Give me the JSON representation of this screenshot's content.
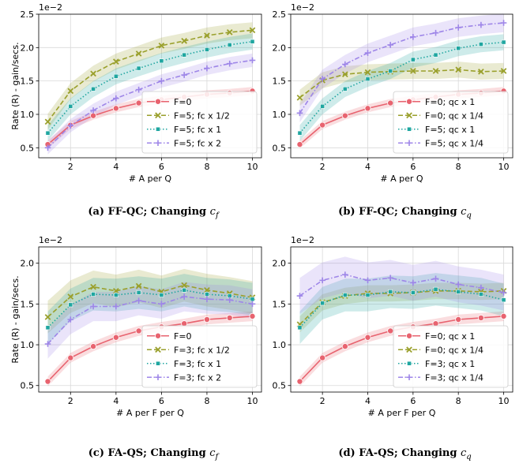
{
  "chart_data": [
    {
      "type": "line",
      "caption": "(a) FF-QC; Changing ",
      "caption_symbol": "c",
      "caption_subscript": "f",
      "xlabel": "# A per Q",
      "ylabel": "Rate (R) - gain/secs.",
      "exponent_label": "1e−2",
      "xlim": [
        0.6,
        10.4
      ],
      "ylim": [
        0.35,
        2.5
      ],
      "xticks": [
        "2",
        "4",
        "6",
        "8",
        "10"
      ],
      "yticks": [
        "0.5",
        "1.0",
        "1.5",
        "2.0",
        "2.5"
      ],
      "legend_position": "lower right",
      "grid": true,
      "x": [
        1,
        2,
        3,
        4,
        5,
        6,
        7,
        8,
        9,
        10
      ],
      "series": [
        {
          "name": "F=0",
          "color": "#e8636f",
          "marker": "circle",
          "dash": "solid",
          "values": [
            0.55,
            0.84,
            0.98,
            1.09,
            1.17,
            1.22,
            1.26,
            1.3,
            1.32,
            1.35
          ],
          "band": 0.06
        },
        {
          "name": "F=5; fc x 1/2",
          "color": "#9aa02c",
          "marker": "x",
          "dash": "dashed",
          "values": [
            0.89,
            1.35,
            1.61,
            1.79,
            1.91,
            2.03,
            2.1,
            2.18,
            2.23,
            2.26
          ],
          "band": 0.12
        },
        {
          "name": "F=5; fc x 1",
          "color": "#1fa6a0",
          "marker": "square",
          "dash": "dotted",
          "values": [
            0.72,
            1.12,
            1.38,
            1.57,
            1.69,
            1.8,
            1.89,
            1.97,
            2.04,
            2.09
          ],
          "band": 0.12
        },
        {
          "name": "F=5; fc x 2",
          "color": "#9e86e8",
          "marker": "plus",
          "dash": "dashdot",
          "values": [
            0.5,
            0.83,
            1.06,
            1.24,
            1.37,
            1.5,
            1.59,
            1.69,
            1.76,
            1.81
          ],
          "band": 0.1
        }
      ]
    },
    {
      "type": "line",
      "caption": "(b) FF-QC; Changing ",
      "caption_symbol": "c",
      "caption_subscript": "q",
      "xlabel": "# A per Q",
      "ylabel": "",
      "exponent_label": "1e−2",
      "xlim": [
        0.6,
        10.4
      ],
      "ylim": [
        0.35,
        2.5
      ],
      "xticks": [
        "2",
        "4",
        "6",
        "8",
        "10"
      ],
      "yticks": [
        "0.5",
        "1.0",
        "1.5",
        "2.0",
        "2.5"
      ],
      "legend_position": "lower right",
      "grid": true,
      "x": [
        1,
        2,
        3,
        4,
        5,
        6,
        7,
        8,
        9,
        10
      ],
      "series": [
        {
          "name": "F=0; qc x 1",
          "color": "#e8636f",
          "marker": "circle",
          "dash": "solid",
          "values": [
            0.55,
            0.84,
            0.98,
            1.09,
            1.17,
            1.22,
            1.26,
            1.3,
            1.32,
            1.35
          ],
          "band": 0.06
        },
        {
          "name": "F=0; qc x 1/4",
          "color": "#9aa02c",
          "marker": "x",
          "dash": "dashed",
          "values": [
            1.25,
            1.51,
            1.6,
            1.63,
            1.64,
            1.65,
            1.65,
            1.67,
            1.64,
            1.65
          ],
          "band": 0.12
        },
        {
          "name": "F=5; qc x 1",
          "color": "#1fa6a0",
          "marker": "square",
          "dash": "dotted",
          "values": [
            0.72,
            1.12,
            1.38,
            1.53,
            1.65,
            1.82,
            1.89,
            1.99,
            2.05,
            2.08
          ],
          "band": 0.12
        },
        {
          "name": "F=5; qc x 1/4",
          "color": "#9e86e8",
          "marker": "plus",
          "dash": "dashdot",
          "values": [
            1.02,
            1.53,
            1.75,
            1.92,
            2.04,
            2.16,
            2.22,
            2.3,
            2.34,
            2.37
          ],
          "band": 0.14
        }
      ]
    },
    {
      "type": "line",
      "caption": "(c) FA-QS; Changing ",
      "caption_symbol": "c",
      "caption_subscript": "f",
      "xlabel": "# A per F per Q",
      "ylabel": "Rate (R) - gain/secs.",
      "exponent_label": "1e−2",
      "xlim": [
        0.6,
        10.4
      ],
      "ylim": [
        0.42,
        2.2
      ],
      "xticks": [
        "2",
        "4",
        "6",
        "8",
        "10"
      ],
      "yticks": [
        "0.5",
        "1.0",
        "1.5",
        "2.0"
      ],
      "legend_position": "lower right",
      "grid": true,
      "x": [
        1,
        2,
        3,
        4,
        5,
        6,
        7,
        8,
        9,
        10
      ],
      "series": [
        {
          "name": "F=0",
          "color": "#e8636f",
          "marker": "circle",
          "dash": "solid",
          "values": [
            0.55,
            0.84,
            0.98,
            1.09,
            1.17,
            1.22,
            1.26,
            1.31,
            1.33,
            1.35
          ],
          "band": 0.06
        },
        {
          "name": "F=3; fc x 1/2",
          "color": "#9aa02c",
          "marker": "x",
          "dash": "dashed",
          "values": [
            1.34,
            1.59,
            1.71,
            1.66,
            1.72,
            1.65,
            1.73,
            1.67,
            1.63,
            1.58
          ],
          "band": 0.2
        },
        {
          "name": "F=3; fc x 1",
          "color": "#1fa6a0",
          "marker": "square",
          "dash": "dotted",
          "values": [
            1.21,
            1.49,
            1.62,
            1.61,
            1.64,
            1.61,
            1.67,
            1.62,
            1.6,
            1.56
          ],
          "band": 0.2
        },
        {
          "name": "F=3; fc x 2",
          "color": "#9e86e8",
          "marker": "plus",
          "dash": "dashdot",
          "values": [
            1.01,
            1.31,
            1.47,
            1.47,
            1.54,
            1.5,
            1.59,
            1.56,
            1.55,
            1.5
          ],
          "band": 0.18
        }
      ]
    },
    {
      "type": "line",
      "caption": "(d) FA-QS; Changing ",
      "caption_symbol": "c",
      "caption_subscript": "q",
      "xlabel": "# A per F per Q",
      "ylabel": "",
      "exponent_label": "1e−2",
      "xlim": [
        0.6,
        10.4
      ],
      "ylim": [
        0.42,
        2.2
      ],
      "xticks": [
        "2",
        "4",
        "6",
        "8",
        "10"
      ],
      "yticks": [
        "0.5",
        "1.0",
        "1.5",
        "2.0"
      ],
      "legend_position": "lower right",
      "grid": true,
      "x": [
        1,
        2,
        3,
        4,
        5,
        6,
        7,
        8,
        9,
        10
      ],
      "series": [
        {
          "name": "F=0; qc x 1",
          "color": "#e8636f",
          "marker": "circle",
          "dash": "solid",
          "values": [
            0.55,
            0.84,
            0.98,
            1.09,
            1.17,
            1.22,
            1.26,
            1.31,
            1.33,
            1.35
          ],
          "band": 0.06
        },
        {
          "name": "F=0; qc x 1/4",
          "color": "#9aa02c",
          "marker": "x",
          "dash": "dashed",
          "values": [
            1.25,
            1.52,
            1.6,
            1.63,
            1.63,
            1.64,
            1.66,
            1.66,
            1.65,
            1.66
          ],
          "band": 0.1
        },
        {
          "name": "F=3; qc x 1",
          "color": "#1fa6a0",
          "marker": "square",
          "dash": "dotted",
          "values": [
            1.21,
            1.51,
            1.61,
            1.61,
            1.65,
            1.64,
            1.68,
            1.65,
            1.62,
            1.55
          ],
          "band": 0.2
        },
        {
          "name": "F=3; qc x 1/4",
          "color": "#9e86e8",
          "marker": "plus",
          "dash": "dashdot",
          "values": [
            1.6,
            1.79,
            1.86,
            1.79,
            1.82,
            1.76,
            1.81,
            1.74,
            1.7,
            1.64
          ],
          "band": 0.22
        }
      ]
    }
  ]
}
